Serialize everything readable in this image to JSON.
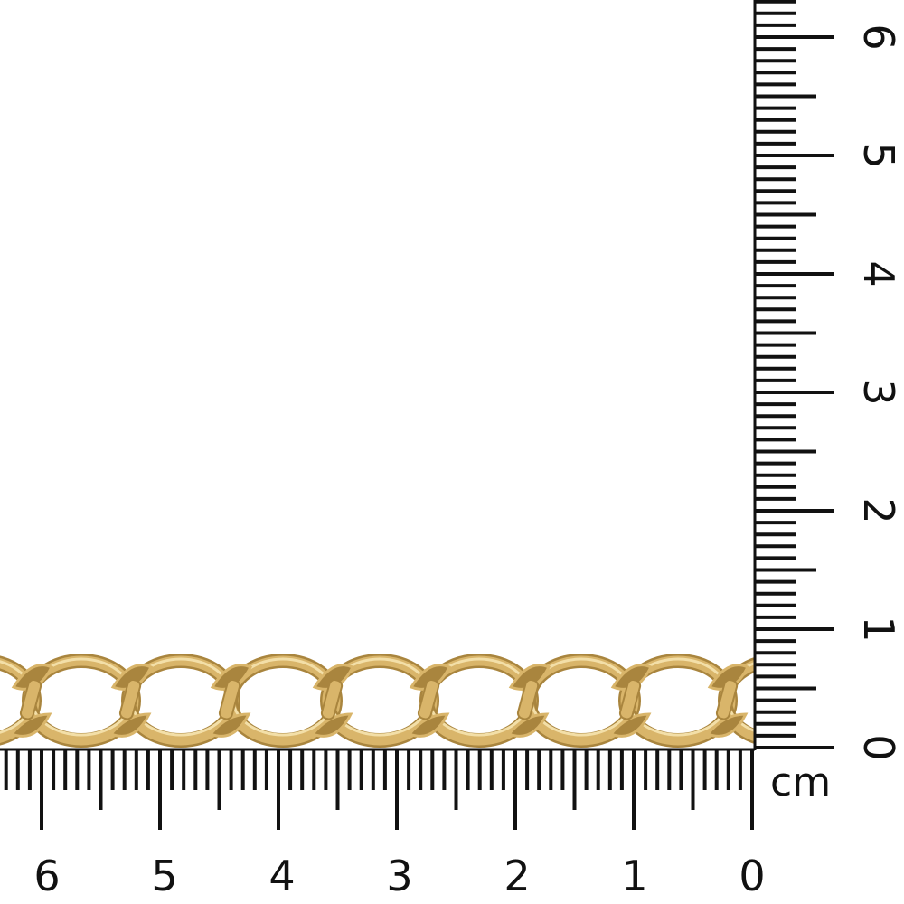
{
  "photo": {
    "subject": "gold curb chain",
    "colors": {
      "gold": "#d9b56a",
      "gold_dark": "#a9853e",
      "gold_light": "#f3dfa8",
      "ruler": "#111111",
      "background": "#ffffff"
    }
  },
  "ruler": {
    "unit": "cm",
    "horizontal_labels": [
      "0",
      "1",
      "2",
      "3",
      "4",
      "5",
      "6"
    ],
    "vertical_labels": [
      "0",
      "1",
      "2",
      "3",
      "4",
      "5",
      "6"
    ]
  }
}
